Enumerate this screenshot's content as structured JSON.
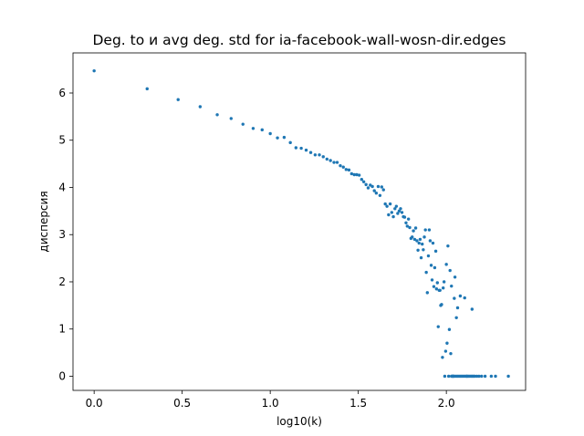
{
  "chart_data": {
    "type": "scatter",
    "title": "Deg. to и avg deg. std for ia-facebook-wall-wosn-dir.edges",
    "xlabel": "log10(k)",
    "ylabel": "дисперсия",
    "xlim": [
      -0.12,
      2.45
    ],
    "ylim": [
      -0.3,
      6.85
    ],
    "xticks": [
      0.0,
      0.5,
      1.0,
      1.5,
      2.0
    ],
    "xtick_labels": [
      "0.0",
      "0.5",
      "1.0",
      "1.5",
      "2.0"
    ],
    "yticks": [
      0,
      1,
      2,
      3,
      4,
      5,
      6
    ],
    "ytick_labels": [
      "0",
      "1",
      "2",
      "3",
      "4",
      "5",
      "6"
    ],
    "grid": false,
    "legend": "none",
    "color": "#1f77b4",
    "series": [
      {
        "x": [
          0.0,
          0.301,
          0.477,
          0.602,
          0.699,
          0.778,
          0.845,
          0.903,
          0.954,
          1.0,
          1.041,
          1.079,
          1.114,
          1.146,
          1.176,
          1.204,
          1.23,
          1.255,
          1.279,
          1.301,
          1.322,
          1.342,
          1.362,
          1.38,
          1.398,
          1.415,
          1.431,
          1.447,
          1.462,
          1.477,
          1.491,
          1.505,
          1.519,
          1.531,
          1.544,
          1.556,
          1.568,
          1.58,
          1.591,
          1.602,
          1.613,
          1.623,
          1.633,
          1.643,
          1.653,
          1.663,
          1.672,
          1.681,
          1.69,
          1.699,
          1.708,
          1.716,
          1.724,
          1.732,
          1.74,
          1.748,
          1.756,
          1.763,
          1.771,
          1.778,
          1.785,
          1.792,
          1.799,
          1.806,
          1.813,
          1.82,
          1.826,
          1.833,
          1.839,
          1.845,
          1.851,
          1.857,
          1.863,
          1.869,
          1.875,
          1.881,
          1.886,
          1.892,
          1.898,
          1.903,
          1.908,
          1.914,
          1.919,
          1.924,
          1.929,
          1.934,
          1.94,
          1.944,
          1.949,
          1.954,
          1.959,
          1.964,
          1.968,
          1.973,
          1.978,
          1.982,
          1.987,
          1.991,
          1.996,
          2.0,
          2.004,
          2.009,
          2.013,
          2.017,
          2.021,
          2.025,
          2.029,
          2.033,
          2.037,
          2.041,
          2.045,
          2.049,
          2.057,
          2.064,
          2.079,
          2.104,
          2.117,
          2.146,
          2.029,
          2.037,
          2.045,
          2.053,
          2.061,
          2.068,
          2.076,
          2.083,
          2.09,
          2.097,
          2.104,
          2.111,
          2.117,
          2.124,
          2.13,
          2.137,
          2.143,
          2.149,
          2.155,
          2.161,
          2.173,
          2.185,
          2.2,
          2.22,
          2.255,
          2.279,
          2.352
        ],
        "y": [
          6.47,
          6.09,
          5.86,
          5.71,
          5.54,
          5.46,
          5.34,
          5.25,
          5.22,
          5.14,
          5.05,
          5.06,
          4.95,
          4.84,
          4.83,
          4.79,
          4.74,
          4.69,
          4.69,
          4.65,
          4.6,
          4.57,
          4.53,
          4.53,
          4.46,
          4.43,
          4.38,
          4.37,
          4.29,
          4.27,
          4.27,
          4.26,
          4.17,
          4.12,
          4.06,
          3.99,
          4.05,
          4.02,
          3.93,
          3.88,
          4.02,
          3.83,
          4.01,
          3.95,
          3.65,
          3.6,
          3.42,
          3.65,
          3.47,
          3.38,
          3.55,
          3.6,
          3.45,
          3.5,
          3.55,
          3.47,
          3.38,
          3.37,
          3.25,
          3.18,
          3.33,
          3.15,
          2.92,
          2.95,
          3.08,
          2.9,
          3.14,
          2.87,
          2.67,
          2.82,
          2.9,
          2.51,
          2.8,
          2.68,
          2.95,
          3.1,
          2.2,
          1.77,
          2.55,
          3.1,
          2.87,
          2.35,
          2.04,
          2.82,
          1.9,
          2.3,
          2.65,
          1.85,
          1.98,
          1.05,
          1.82,
          1.82,
          1.5,
          1.52,
          0.4,
          1.87,
          2.0,
          0.0,
          0.53,
          2.37,
          0.7,
          2.76,
          0.0,
          0.99,
          2.24,
          0.48,
          1.91,
          0.0,
          0.0,
          0.0,
          1.65,
          2.1,
          1.24,
          1.45,
          1.7,
          1.66,
          0.0,
          1.42,
          0.0,
          0.0,
          0.0,
          0.0,
          0.0,
          0.0,
          0.0,
          0.0,
          0.0,
          0.0,
          0.0,
          0.0,
          0.0,
          0.0,
          0.0,
          0.0,
          0.0,
          0.0,
          0.0,
          0.0,
          0.0,
          0.0,
          0.0,
          0.0,
          0.0,
          0.0,
          0.0
        ]
      }
    ]
  }
}
